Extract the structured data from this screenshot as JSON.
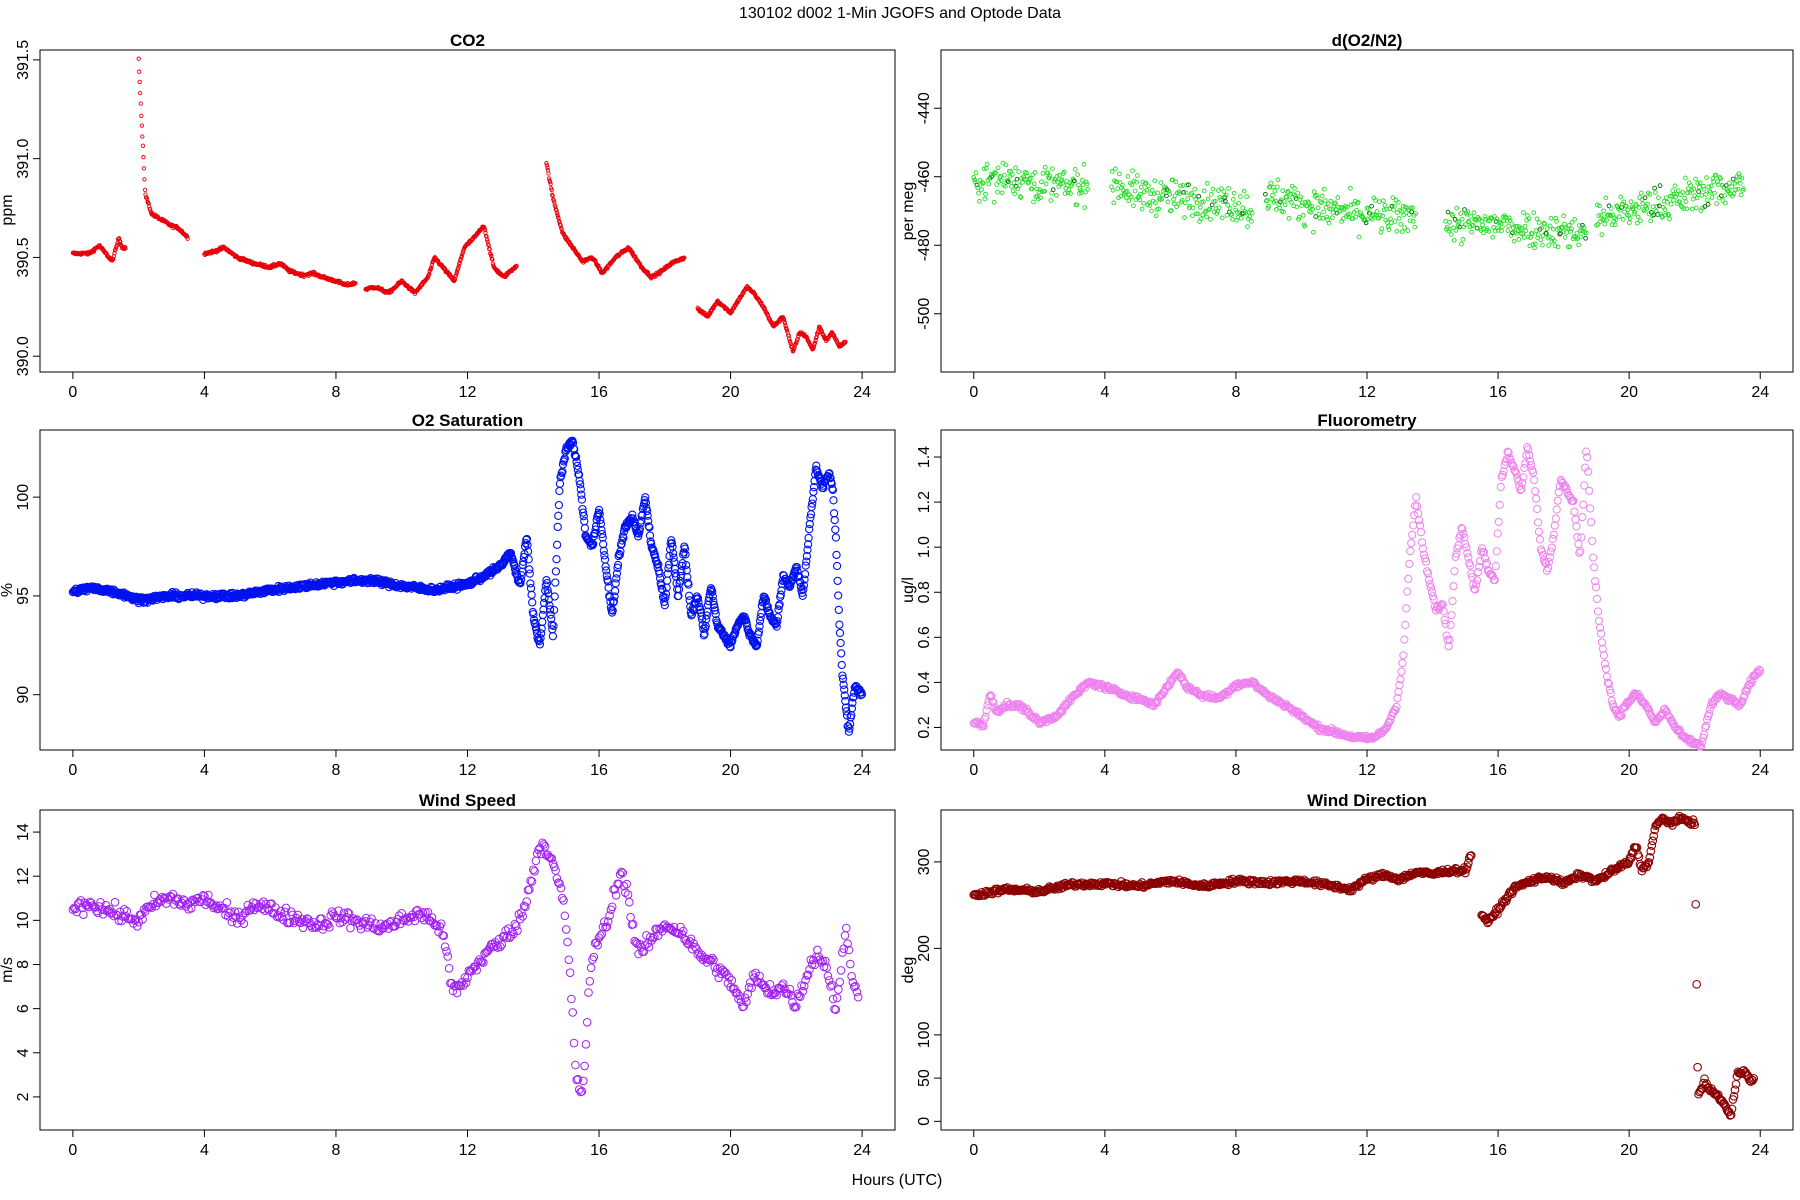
{
  "figure": {
    "title": "130102   d002   1-Min  JGOFS and Optode Data",
    "xlabel": "Hours (UTC)"
  },
  "chart_data": [
    {
      "type": "scatter",
      "title": "CO2",
      "ylabel": "ppm",
      "xlabel": "",
      "xlim": [
        -1,
        25
      ],
      "ylim": [
        389.92,
        391.55
      ],
      "xticks": [
        0,
        4,
        8,
        12,
        16,
        20,
        24
      ],
      "yticks": [
        390.0,
        390.5,
        391.0,
        391.5
      ],
      "yticklabels": [
        "390.0",
        "390.5",
        "391.0",
        "391.5"
      ],
      "color": "#e8000b",
      "grid": false,
      "segments": [
        [
          0.0,
          1.6
        ],
        [
          2.0,
          3.5
        ],
        [
          4.0,
          8.6
        ],
        [
          8.9,
          13.5
        ],
        [
          14.4,
          18.6
        ],
        [
          19.0,
          23.5
        ]
      ],
      "series": [
        {
          "x": [
            0,
            0.5,
            0.8,
            1.0,
            1.2,
            1.4,
            1.5,
            1.6,
            2.0,
            2.1,
            2.2,
            2.4,
            2.6,
            2.8,
            3.0,
            3.2,
            3.5,
            4.0,
            4.3,
            4.6,
            5.0,
            5.5,
            6.0,
            6.3,
            6.6,
            7.0,
            7.3,
            7.6,
            8.0,
            8.3,
            8.6,
            8.9,
            9.2,
            9.6,
            10.0,
            10.4,
            10.8,
            11.0,
            11.3,
            11.6,
            11.9,
            12.2,
            12.5,
            12.8,
            13.1,
            13.5,
            14.4,
            14.6,
            14.9,
            15.2,
            15.5,
            15.8,
            16.1,
            16.5,
            16.9,
            17.3,
            17.6,
            17.9,
            18.2,
            18.6,
            19.0,
            19.3,
            19.6,
            20.0,
            20.3,
            20.5,
            20.7,
            21.0,
            21.3,
            21.6,
            21.9,
            22.1,
            22.3,
            22.5,
            22.7,
            22.9,
            23.1,
            23.3,
            23.5
          ],
          "y": [
            390.52,
            390.52,
            390.56,
            390.52,
            390.48,
            390.6,
            390.55,
            390.55,
            391.5,
            391.15,
            390.82,
            390.72,
            390.7,
            390.68,
            390.66,
            390.65,
            390.6,
            390.52,
            390.53,
            390.55,
            390.5,
            390.47,
            390.45,
            390.47,
            390.43,
            390.41,
            390.42,
            390.4,
            390.38,
            390.36,
            390.37,
            390.34,
            390.35,
            390.32,
            390.38,
            390.32,
            390.4,
            390.5,
            390.44,
            390.38,
            390.55,
            390.6,
            390.66,
            390.45,
            390.4,
            390.46,
            390.98,
            390.8,
            390.62,
            390.55,
            390.48,
            390.5,
            390.42,
            390.5,
            390.55,
            390.45,
            390.4,
            390.43,
            390.47,
            390.5,
            390.24,
            390.2,
            390.28,
            390.22,
            390.3,
            390.35,
            390.32,
            390.25,
            390.15,
            390.2,
            390.02,
            390.12,
            390.1,
            390.03,
            390.15,
            390.08,
            390.12,
            390.05,
            390.07
          ]
        }
      ]
    },
    {
      "type": "scatter",
      "title": "d(O2/N2)",
      "ylabel": "per meg",
      "xlabel": "",
      "xlim": [
        -1,
        25
      ],
      "ylim": [
        -517,
        -423
      ],
      "xticks": [
        0,
        4,
        8,
        12,
        16,
        20,
        24
      ],
      "yticks": [
        -500,
        -480,
        -460,
        -440
      ],
      "yticklabels": [
        "-500",
        "-480",
        "-460",
        "-440"
      ],
      "color": "#22dd22",
      "grid": false,
      "segments": [
        [
          0.0,
          3.5
        ],
        [
          4.2,
          8.5
        ],
        [
          8.9,
          13.5
        ],
        [
          14.4,
          18.7
        ],
        [
          19.0,
          23.5
        ]
      ],
      "series": [
        {
          "x": [
            0,
            1,
            2,
            3,
            3.5,
            4.2,
            5,
            6,
            7,
            8,
            8.5,
            8.9,
            10,
            11,
            12,
            13,
            13.5,
            14.4,
            15,
            16,
            17,
            18,
            18.7,
            19.0,
            20,
            21,
            22,
            23,
            23.5
          ],
          "y": [
            -462,
            -460,
            -462,
            -463,
            -462,
            -461,
            -465,
            -466,
            -467,
            -468,
            -470,
            -465,
            -468,
            -470,
            -471,
            -472,
            -470,
            -474,
            -474,
            -474,
            -475,
            -476,
            -476,
            -472,
            -470,
            -468,
            -465,
            -463,
            -462
          ]
        }
      ]
    },
    {
      "type": "scatter",
      "title": "O2 Saturation",
      "ylabel": "%",
      "xlabel": "",
      "xlim": [
        -1,
        25
      ],
      "ylim": [
        87.2,
        103.4
      ],
      "xticks": [
        0,
        4,
        8,
        12,
        16,
        20,
        24
      ],
      "yticks": [
        90,
        95,
        100
      ],
      "yticklabels": [
        "90",
        "95",
        "100"
      ],
      "color": "#0011ee",
      "grid": false,
      "series": [
        {
          "x": [
            0,
            0.5,
            1.0,
            1.5,
            2.0,
            2.5,
            3.0,
            4.0,
            5.0,
            6.0,
            7.0,
            8.0,
            9.0,
            10.0,
            11.0,
            12.0,
            12.5,
            13.0,
            13.3,
            13.6,
            13.8,
            14.0,
            14.2,
            14.4,
            14.6,
            14.8,
            15.0,
            15.2,
            15.4,
            15.6,
            15.8,
            16.0,
            16.2,
            16.4,
            16.6,
            16.8,
            17.0,
            17.2,
            17.4,
            17.6,
            17.8,
            18.0,
            18.2,
            18.4,
            18.6,
            18.8,
            19.0,
            19.2,
            19.4,
            19.6,
            19.8,
            20.0,
            20.2,
            20.4,
            20.6,
            20.8,
            21.0,
            21.2,
            21.4,
            21.6,
            21.8,
            22.0,
            22.2,
            22.4,
            22.6,
            22.8,
            23.0,
            23.1,
            23.2,
            23.3,
            23.4,
            23.5,
            23.6,
            23.7,
            23.8,
            24.0
          ],
          "y": [
            95.2,
            95.4,
            95.3,
            95.1,
            94.8,
            94.9,
            95.0,
            95.0,
            95.0,
            95.3,
            95.5,
            95.7,
            95.8,
            95.5,
            95.3,
            95.6,
            96.0,
            96.5,
            97.2,
            95.5,
            98.0,
            94.0,
            92.5,
            95.8,
            93.0,
            100.5,
            102.5,
            102.8,
            101.0,
            98.0,
            97.5,
            99.5,
            96.5,
            94.0,
            97.0,
            98.5,
            99.0,
            98.0,
            100.0,
            97.5,
            96.5,
            94.5,
            98.0,
            95.0,
            97.5,
            94.0,
            95.0,
            93.0,
            95.5,
            93.5,
            93.0,
            92.5,
            93.5,
            94.0,
            93.0,
            92.5,
            95.0,
            94.0,
            93.5,
            96.0,
            95.5,
            96.5,
            95.0,
            98.5,
            101.5,
            100.5,
            101.2,
            100.5,
            98.0,
            94.0,
            91.0,
            89.5,
            88.0,
            89.5,
            90.5,
            90.0
          ]
        }
      ]
    },
    {
      "type": "scatter",
      "title": "Fluorometry",
      "ylabel": "ug/l",
      "xlabel": "",
      "xlim": [
        -1,
        25
      ],
      "ylim": [
        0.1,
        1.52
      ],
      "xticks": [
        0,
        4,
        8,
        12,
        16,
        20,
        24
      ],
      "yticks": [
        0.2,
        0.4,
        0.6,
        0.8,
        1.0,
        1.2,
        1.4
      ],
      "yticklabels": [
        "0.2",
        "0.4",
        "0.6",
        "0.8",
        "1.0",
        "1.2",
        "1.4"
      ],
      "color": "#ee82ee",
      "grid": false,
      "series": [
        {
          "x": [
            0,
            0.3,
            0.5,
            0.7,
            1.0,
            1.5,
            2.0,
            2.5,
            3.0,
            3.5,
            4.0,
            4.5,
            5.0,
            5.5,
            6.0,
            6.2,
            6.5,
            7.0,
            7.5,
            8.0,
            8.5,
            9.0,
            9.5,
            10.0,
            10.5,
            11.0,
            11.5,
            12.0,
            12.3,
            12.6,
            12.9,
            13.1,
            13.3,
            13.5,
            13.7,
            13.9,
            14.1,
            14.3,
            14.5,
            14.7,
            14.9,
            15.1,
            15.3,
            15.5,
            15.7,
            15.9,
            16.1,
            16.3,
            16.5,
            16.7,
            16.9,
            17.1,
            17.3,
            17.5,
            17.7,
            17.9,
            18.1,
            18.3,
            18.5,
            18.7,
            18.9,
            19.1,
            19.3,
            19.5,
            19.7,
            19.9,
            20.2,
            20.5,
            20.8,
            21.1,
            21.4,
            21.7,
            22.0,
            22.2,
            22.5,
            22.8,
            23.1,
            23.4,
            23.7,
            24.0
          ],
          "y": [
            0.22,
            0.21,
            0.35,
            0.27,
            0.3,
            0.29,
            0.22,
            0.25,
            0.33,
            0.4,
            0.38,
            0.35,
            0.33,
            0.3,
            0.4,
            0.45,
            0.38,
            0.34,
            0.33,
            0.39,
            0.4,
            0.34,
            0.3,
            0.25,
            0.2,
            0.18,
            0.16,
            0.15,
            0.16,
            0.2,
            0.3,
            0.5,
            0.95,
            1.22,
            1.0,
            0.85,
            0.72,
            0.75,
            0.55,
            0.95,
            1.1,
            0.95,
            0.8,
            1.0,
            0.9,
            0.85,
            1.3,
            1.42,
            1.35,
            1.25,
            1.45,
            1.3,
            1.0,
            0.9,
            1.05,
            1.3,
            1.25,
            1.2,
            0.95,
            1.45,
            0.95,
            0.65,
            0.45,
            0.3,
            0.25,
            0.3,
            0.35,
            0.3,
            0.22,
            0.28,
            0.2,
            0.15,
            0.13,
            0.12,
            0.3,
            0.35,
            0.32,
            0.3,
            0.4,
            0.46
          ]
        }
      ]
    },
    {
      "type": "scatter",
      "title": "Wind Speed",
      "ylabel": "m/s",
      "xlabel": "",
      "xlim": [
        -1,
        25
      ],
      "ylim": [
        0.5,
        15
      ],
      "xticks": [
        0,
        4,
        8,
        12,
        16,
        20,
        24
      ],
      "yticks": [
        2,
        4,
        6,
        8,
        10,
        12,
        14
      ],
      "yticklabels": [
        "2",
        "4",
        "6",
        "8",
        "10",
        "12",
        "14"
      ],
      "color": "#a020f0",
      "grid": false,
      "series": [
        {
          "x": [
            0,
            0.5,
            1.0,
            1.5,
            2.0,
            2.5,
            3.0,
            3.5,
            4.0,
            4.5,
            5.0,
            5.5,
            6.0,
            6.5,
            7.0,
            7.5,
            8.0,
            8.5,
            9.0,
            9.5,
            10.0,
            10.5,
            11.0,
            11.3,
            11.5,
            11.7,
            12.0,
            12.3,
            12.6,
            13.0,
            13.3,
            13.6,
            13.9,
            14.1,
            14.3,
            14.5,
            14.7,
            14.9,
            15.1,
            15.3,
            15.5,
            15.7,
            15.9,
            16.1,
            16.3,
            16.5,
            16.7,
            16.9,
            17.1,
            17.3,
            17.5,
            18.0,
            18.5,
            19.0,
            19.5,
            19.8,
            20.1,
            20.4,
            20.7,
            21.0,
            21.3,
            21.6,
            22.0,
            22.3,
            22.6,
            22.9,
            23.2,
            23.5,
            23.7,
            23.9
          ],
          "y": [
            10.5,
            10.8,
            10.5,
            10.2,
            10.0,
            10.8,
            11.0,
            10.7,
            11.0,
            10.5,
            10.0,
            10.8,
            10.5,
            10.2,
            10.0,
            9.8,
            10.2,
            10.0,
            9.8,
            9.7,
            10.0,
            10.3,
            10.0,
            9.2,
            7.0,
            6.8,
            7.5,
            8.0,
            8.6,
            9.0,
            9.5,
            10.0,
            11.5,
            13.0,
            13.5,
            13.0,
            12.0,
            11.0,
            8.0,
            3.0,
            2.0,
            7.0,
            9.0,
            9.5,
            10.0,
            11.5,
            12.2,
            11.0,
            9.0,
            8.5,
            9.0,
            9.8,
            9.5,
            8.5,
            8.0,
            7.5,
            7.0,
            6.0,
            7.5,
            7.0,
            6.8,
            7.0,
            6.2,
            7.5,
            8.5,
            8.0,
            6.0,
            9.5,
            7.5,
            6.2
          ]
        }
      ]
    },
    {
      "type": "scatter",
      "title": "Wind Direction",
      "ylabel": "deg",
      "xlabel": "",
      "xlim": [
        -1,
        25
      ],
      "ylim": [
        -10,
        360
      ],
      "xticks": [
        0,
        4,
        8,
        12,
        16,
        20,
        24
      ],
      "yticks": [
        0,
        50,
        100,
        200,
        300
      ],
      "yticklabels": [
        "0",
        "50",
        "100",
        "200",
        "300"
      ],
      "color": "#8b0000",
      "grid": false,
      "segments": [
        [
          0.0,
          15.2
        ],
        [
          15.5,
          22.0
        ],
        [
          22.0,
          22.9
        ],
        [
          22.9,
          23.8
        ]
      ],
      "series": [
        {
          "x": [
            0,
            1,
            2,
            3,
            4,
            5,
            6,
            7,
            8,
            9,
            10,
            11,
            11.5,
            12,
            12.5,
            13,
            13.5,
            14,
            14.5,
            15.0,
            15.2,
            15.5,
            15.7,
            16.0,
            16.5,
            17.0,
            17.5,
            18.0,
            18.5,
            19.0,
            19.5,
            20.0,
            20.2,
            20.4,
            20.6,
            20.8,
            21.0,
            21.3,
            21.6,
            22.0,
            22.1,
            22.3,
            22.5,
            22.7,
            22.9,
            23.1,
            23.3,
            23.5,
            23.7,
            23.8
          ],
          "y": [
            262,
            268,
            266,
            274,
            275,
            272,
            278,
            272,
            278,
            276,
            278,
            272,
            268,
            280,
            285,
            280,
            288,
            286,
            290,
            290,
            310,
            240,
            230,
            245,
            270,
            278,
            283,
            275,
            285,
            278,
            290,
            300,
            320,
            290,
            300,
            340,
            350,
            345,
            350,
            345,
            30,
            45,
            35,
            30,
            20,
            5,
            55,
            60,
            45,
            50
          ]
        }
      ]
    }
  ]
}
